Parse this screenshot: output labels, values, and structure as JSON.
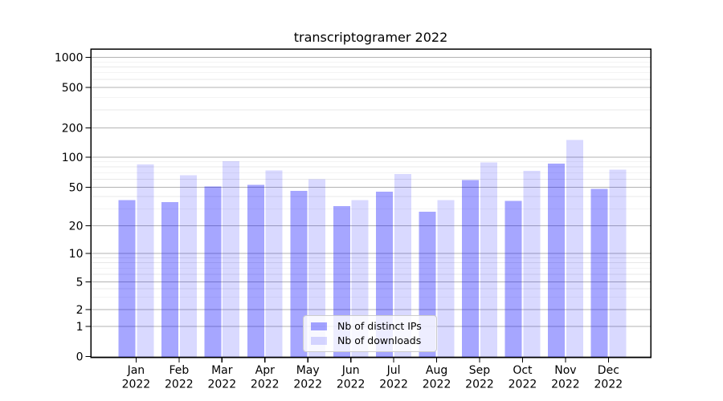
{
  "chart_data": {
    "type": "bar",
    "title": "transcriptogramer 2022",
    "categories": [
      "Jan",
      "Feb",
      "Mar",
      "Apr",
      "May",
      "Jun",
      "Jul",
      "Aug",
      "Sep",
      "Oct",
      "Nov",
      "Dec"
    ],
    "category_sublabel": "2022",
    "series": [
      {
        "name": "Nb of distinct IPs",
        "color": "rgba(0,0,255,0.35)",
        "color_on_white_hex": "#a6a6ff",
        "values": [
          37,
          35,
          51,
          53,
          46,
          32,
          45,
          28,
          59,
          36,
          86,
          48
        ]
      },
      {
        "name": "Nb of downloads",
        "color": "rgba(0,0,255,0.15)",
        "color_on_white_hex": "#d9d9ff",
        "values": [
          85,
          66,
          91,
          74,
          60,
          37,
          68,
          37,
          89,
          73,
          150,
          75
        ]
      }
    ],
    "yticks": [
      0,
      1,
      2,
      5,
      10,
      20,
      50,
      100,
      200,
      500,
      1000
    ],
    "y_scale": "symlog",
    "ylim": [
      0,
      1200
    ],
    "xlabel": "",
    "ylabel": "",
    "grid": {
      "major": true,
      "minor": true,
      "major_color": "#b3b3b3",
      "minor_color": "#e8e8e8"
    },
    "legend": {
      "position": "lower-center-inside",
      "entries": [
        "Nb of distinct IPs",
        "Nb of downloads"
      ]
    },
    "frame_color": "#000000"
  }
}
